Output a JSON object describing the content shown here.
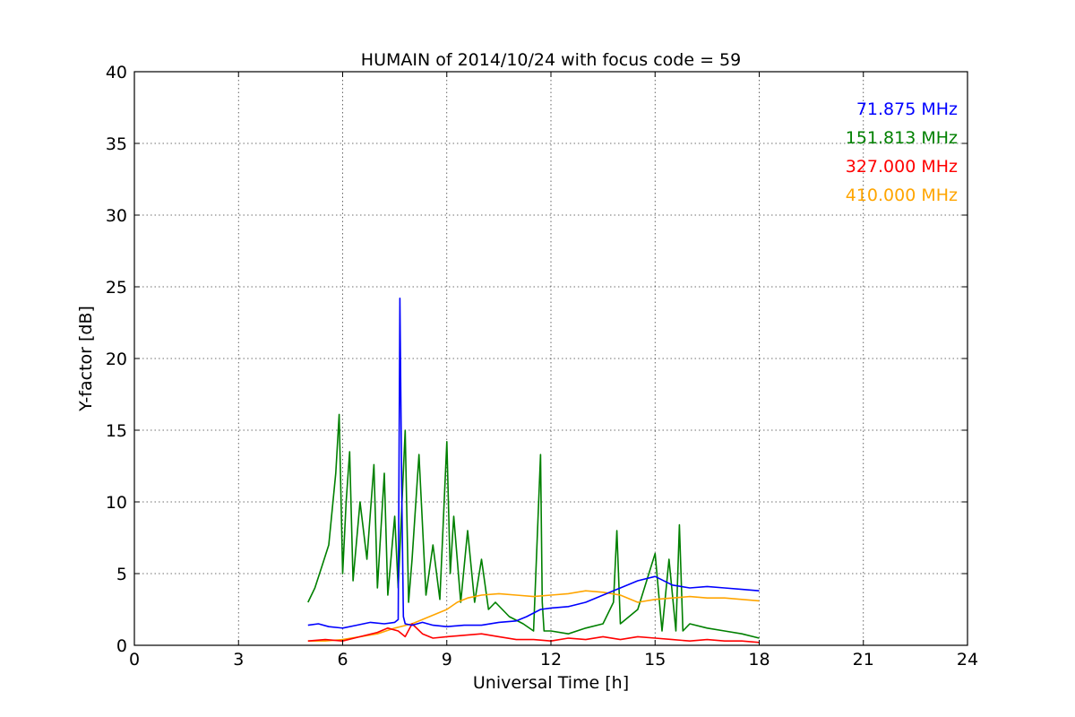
{
  "chart_data": {
    "type": "line",
    "title": "HUMAIN of 2014/10/24 with focus code = 59",
    "xlabel": "Universal Time [h]",
    "ylabel": "Y-factor [dB]",
    "xlim": [
      0,
      24
    ],
    "ylim": [
      0,
      40
    ],
    "xticks": [
      0,
      3,
      6,
      9,
      12,
      15,
      18,
      21,
      24
    ],
    "yticks": [
      0,
      5,
      10,
      15,
      20,
      25,
      30,
      35,
      40
    ],
    "grid": true,
    "legend_position": "top-right",
    "series": [
      {
        "name": "71.875 MHz",
        "color": "#0000ff",
        "x": [
          5.0,
          5.3,
          5.6,
          6.0,
          6.4,
          6.8,
          7.2,
          7.5,
          7.6,
          7.65,
          7.7,
          7.75,
          7.8,
          8.0,
          8.3,
          8.6,
          9.0,
          9.5,
          10.0,
          10.5,
          11.0,
          11.3,
          11.7,
          12.0,
          12.5,
          13.0,
          13.5,
          14.0,
          14.5,
          15.0,
          15.5,
          16.0,
          16.5,
          17.0,
          17.5,
          18.0
        ],
        "y": [
          1.4,
          1.5,
          1.3,
          1.2,
          1.4,
          1.6,
          1.5,
          1.6,
          1.8,
          24.2,
          11.0,
          2.0,
          1.5,
          1.4,
          1.6,
          1.4,
          1.3,
          1.4,
          1.4,
          1.6,
          1.7,
          2.0,
          2.5,
          2.6,
          2.7,
          3.0,
          3.5,
          4.0,
          4.5,
          4.8,
          4.2,
          4.0,
          4.1,
          4.0,
          3.9,
          3.8
        ]
      },
      {
        "name": "151.813 MHz",
        "color": "#008000",
        "x": [
          5.0,
          5.2,
          5.4,
          5.6,
          5.8,
          5.9,
          6.0,
          6.1,
          6.2,
          6.3,
          6.5,
          6.7,
          6.9,
          7.0,
          7.2,
          7.3,
          7.5,
          7.6,
          7.8,
          7.9,
          8.0,
          8.2,
          8.4,
          8.6,
          8.8,
          9.0,
          9.1,
          9.2,
          9.4,
          9.6,
          9.8,
          10.0,
          10.2,
          10.4,
          10.8,
          11.2,
          11.5,
          11.7,
          11.75,
          11.8,
          12.0,
          12.5,
          13.0,
          13.5,
          13.8,
          13.9,
          14.0,
          14.5,
          15.0,
          15.2,
          15.4,
          15.6,
          15.7,
          15.8,
          16.0,
          16.5,
          17.0,
          17.5,
          18.0
        ],
        "y": [
          3.0,
          4.0,
          5.5,
          7.0,
          12.0,
          16.1,
          5.0,
          10.0,
          13.5,
          4.5,
          10.0,
          6.0,
          12.6,
          4.0,
          12.0,
          3.5,
          9.0,
          4.0,
          15.0,
          3.0,
          6.0,
          13.3,
          3.5,
          7.0,
          3.2,
          14.2,
          5.0,
          9.0,
          3.0,
          8.0,
          3.0,
          6.0,
          2.5,
          3.0,
          2.0,
          1.5,
          1.0,
          13.3,
          3.0,
          1.0,
          1.0,
          0.8,
          1.2,
          1.5,
          3.0,
          8.0,
          1.5,
          2.5,
          6.4,
          1.0,
          6.0,
          1.0,
          8.4,
          1.0,
          1.5,
          1.2,
          1.0,
          0.8,
          0.5
        ]
      },
      {
        "name": "327.000 MHz",
        "color": "#ff0000",
        "x": [
          5.0,
          5.5,
          6.0,
          6.5,
          7.0,
          7.3,
          7.6,
          7.8,
          8.0,
          8.3,
          8.6,
          9.0,
          9.5,
          10.0,
          10.5,
          11.0,
          11.5,
          12.0,
          12.5,
          13.0,
          13.5,
          14.0,
          14.5,
          15.0,
          15.5,
          16.0,
          16.5,
          17.0,
          17.5,
          18.0
        ],
        "y": [
          0.3,
          0.4,
          0.3,
          0.6,
          0.9,
          1.2,
          1.0,
          0.6,
          1.5,
          0.8,
          0.5,
          0.6,
          0.7,
          0.8,
          0.6,
          0.4,
          0.4,
          0.3,
          0.5,
          0.4,
          0.6,
          0.4,
          0.6,
          0.5,
          0.4,
          0.3,
          0.4,
          0.3,
          0.3,
          0.2
        ]
      },
      {
        "name": "410.000 MHz",
        "color": "#ffa500",
        "x": [
          5.0,
          5.5,
          6.0,
          6.5,
          7.0,
          7.5,
          8.0,
          8.5,
          9.0,
          9.3,
          9.6,
          10.0,
          10.5,
          11.0,
          11.5,
          12.0,
          12.5,
          13.0,
          13.5,
          14.0,
          14.5,
          15.0,
          15.5,
          16.0,
          16.5,
          17.0,
          17.5,
          18.0
        ],
        "y": [
          0.3,
          0.3,
          0.4,
          0.6,
          0.8,
          1.2,
          1.5,
          2.0,
          2.5,
          3.0,
          3.3,
          3.5,
          3.6,
          3.5,
          3.4,
          3.5,
          3.6,
          3.8,
          3.7,
          3.5,
          3.0,
          3.2,
          3.3,
          3.4,
          3.3,
          3.3,
          3.2,
          3.1
        ]
      }
    ]
  }
}
